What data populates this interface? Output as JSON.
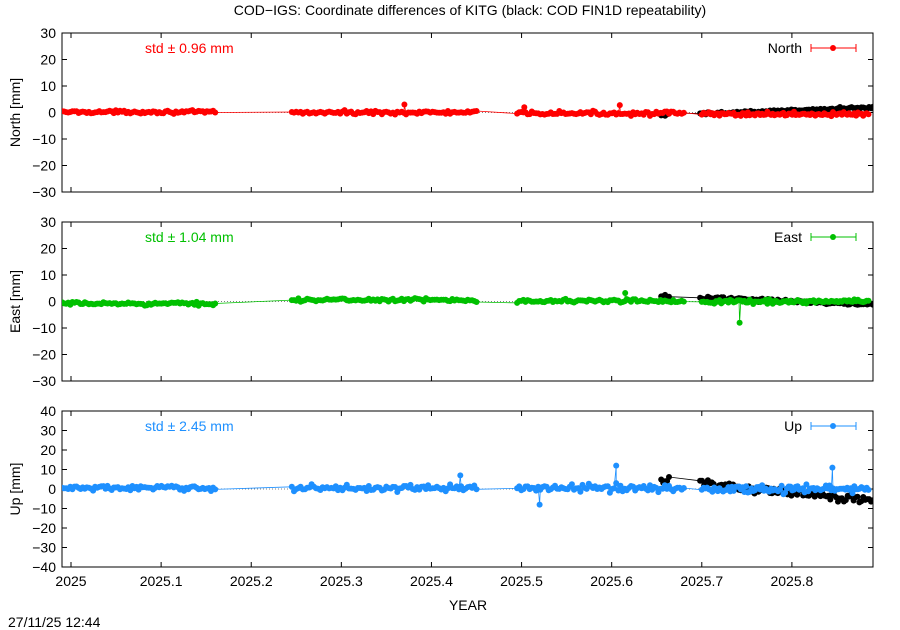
{
  "title": "COD−IGS: Coordinate differences of KITG (black: COD FIN1D repeatability)",
  "timestamp": "27/11/25 12:44",
  "xlabel": "YEAR",
  "x_ticks": [
    "2025",
    "2025.1",
    "2025.2",
    "2025.3",
    "2025.4",
    "2025.5",
    "2025.6",
    "2025.7",
    "2025.8"
  ],
  "colors": {
    "north": "#ff0000",
    "east": "#00c000",
    "up": "#1e90ff",
    "repeatability": "#000000",
    "axis": "#000000"
  },
  "chart_data": [
    {
      "type": "scatter",
      "component": "North",
      "ylabel": "North [mm]",
      "legend": "North",
      "legend_position": "top-right",
      "std_label": "std ± 0.96 mm",
      "xlim": [
        2024.99,
        2025.89
      ],
      "ylim": [
        -30,
        30
      ],
      "y_ticks": [
        "30",
        "20",
        "10",
        "0",
        "−10",
        "−20",
        "−30"
      ],
      "segments": [
        {
          "x0": 2024.99,
          "x1": 2025.16,
          "n": 75,
          "amp": 0.8,
          "offset": 0.2
        },
        {
          "x0": 2025.245,
          "x1": 2025.45,
          "n": 85,
          "amp": 1.0,
          "offset": 0.0
        },
        {
          "x0": 2025.495,
          "x1": 2025.68,
          "n": 80,
          "amp": 1.1,
          "offset": -0.3
        },
        {
          "x0": 2025.7,
          "x1": 2025.885,
          "n": 95,
          "amp": 1.1,
          "offset": -0.6
        }
      ],
      "markers": [
        {
          "x": 2025.37,
          "y": 3.0
        },
        {
          "x": 2025.503,
          "y": 2.0
        },
        {
          "x": 2025.609,
          "y": 2.8
        }
      ],
      "repeatability": {
        "x0": 2025.655,
        "x1": 2025.89,
        "n": 110,
        "start": -1.0,
        "end": 1.8,
        "amp": 0.8
      }
    },
    {
      "type": "scatter",
      "component": "East",
      "ylabel": "East [mm]",
      "legend": "East",
      "legend_position": "top-right",
      "std_label": "std ± 1.04 mm",
      "xlim": [
        2024.99,
        2025.89
      ],
      "ylim": [
        -30,
        30
      ],
      "y_ticks": [
        "30",
        "20",
        "10",
        "0",
        "−10",
        "−20",
        "−30"
      ],
      "segments": [
        {
          "x0": 2024.99,
          "x1": 2025.16,
          "n": 75,
          "amp": 0.9,
          "offset": -0.8
        },
        {
          "x0": 2025.245,
          "x1": 2025.45,
          "n": 85,
          "amp": 0.9,
          "offset": 0.6
        },
        {
          "x0": 2025.495,
          "x1": 2025.68,
          "n": 80,
          "amp": 1.0,
          "offset": 0.2
        },
        {
          "x0": 2025.7,
          "x1": 2025.885,
          "n": 95,
          "amp": 1.1,
          "offset": 0.0
        }
      ],
      "markers": [
        {
          "x": 2025.742,
          "y": -8.0
        },
        {
          "x": 2025.615,
          "y": 3.2
        }
      ],
      "repeatability": {
        "x0": 2025.655,
        "x1": 2025.89,
        "n": 110,
        "start": 2.0,
        "end": -1.2,
        "amp": 0.8
      }
    },
    {
      "type": "scatter",
      "component": "Up",
      "ylabel": "Up [mm]",
      "legend": "Up",
      "legend_position": "top-right",
      "std_label": "std ± 2.45 mm",
      "xlim": [
        2024.99,
        2025.89
      ],
      "ylim": [
        -40,
        40
      ],
      "y_ticks": [
        "40",
        "30",
        "20",
        "10",
        "0",
        "−10",
        "−20",
        "−30",
        "−40"
      ],
      "segments": [
        {
          "x0": 2024.99,
          "x1": 2025.16,
          "n": 75,
          "amp": 2.0,
          "offset": 0.5
        },
        {
          "x0": 2025.245,
          "x1": 2025.45,
          "n": 85,
          "amp": 2.2,
          "offset": 0.5
        },
        {
          "x0": 2025.495,
          "x1": 2025.68,
          "n": 80,
          "amp": 3.0,
          "offset": 0.5
        },
        {
          "x0": 2025.7,
          "x1": 2025.885,
          "n": 95,
          "amp": 3.0,
          "offset": 0.0
        }
      ],
      "markers": [
        {
          "x": 2025.432,
          "y": 7.0
        },
        {
          "x": 2025.605,
          "y": 12.0
        },
        {
          "x": 2025.52,
          "y": -8.0
        },
        {
          "x": 2025.845,
          "y": 11.0
        }
      ],
      "repeatability": {
        "x0": 2025.655,
        "x1": 2025.89,
        "n": 110,
        "start": 5.0,
        "end": -6.0,
        "amp": 3.0
      }
    }
  ]
}
